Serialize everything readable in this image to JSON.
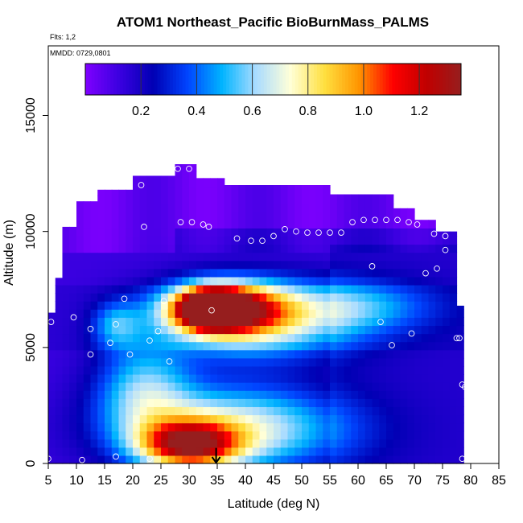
{
  "chart_data": {
    "type": "heatmap",
    "title": "ATOM1 Northeast_Pacific BioBurnMass_PALMS",
    "annotations": [
      "Flts: 1,2",
      "MMDD: 0729,0801"
    ],
    "xlabel": "Latitude (deg N)",
    "ylabel": "Altitude (m)",
    "xlim": [
      5,
      85
    ],
    "ylim": [
      0,
      18000
    ],
    "x_ticks": [
      5,
      10,
      15,
      20,
      25,
      30,
      35,
      40,
      45,
      50,
      55,
      60,
      65,
      70,
      75,
      80,
      85
    ],
    "y_ticks": [
      0,
      5000,
      10000,
      15000
    ],
    "colorbar": {
      "range": [
        0,
        1.35
      ],
      "ticks": [
        0.2,
        0.4,
        0.6,
        0.8,
        1.0,
        1.2
      ],
      "tick_labels": [
        "0.2",
        "0.4",
        "0.6",
        "0.8",
        "1.0",
        "1.2"
      ],
      "colors": [
        "#7f00ff",
        "#3a00e0",
        "#0000b4",
        "#0045ff",
        "#00b4ff",
        "#aadcff",
        "#ffffd8",
        "#ffe040",
        "#ff9600",
        "#ff0000",
        "#c00000",
        "#961e1e"
      ],
      "placement": "top inside plot"
    },
    "field_hotspots": [
      {
        "lat": 34,
        "alt": 6700,
        "value": 1.25,
        "sigma_lat": 3.5,
        "sigma_alt": 500
      },
      {
        "lat": 36,
        "alt": 6700,
        "value": 0.95,
        "sigma_lat": 7.0,
        "sigma_alt": 750
      },
      {
        "lat": 42,
        "alt": 6200,
        "value": 0.55,
        "sigma_lat": 12.0,
        "sigma_alt": 1200
      },
      {
        "lat": 30,
        "alt": 800,
        "value": 0.9,
        "sigma_lat": 6.0,
        "sigma_alt": 700
      },
      {
        "lat": 38,
        "alt": 1500,
        "value": 0.6,
        "sigma_lat": 14.0,
        "sigma_alt": 1300
      },
      {
        "lat": 22,
        "alt": 3200,
        "value": 0.4,
        "sigma_lat": 6.0,
        "sigma_alt": 1500
      },
      {
        "lat": 17,
        "alt": 6000,
        "value": 0.28,
        "sigma_lat": 3.0,
        "sigma_alt": 700
      },
      {
        "lat": 60,
        "alt": 6800,
        "value": 0.25,
        "sigma_lat": 10.0,
        "sigma_alt": 800
      }
    ],
    "samples": [
      {
        "lat": 5,
        "alt": 200
      },
      {
        "lat": 11,
        "alt": 150
      },
      {
        "lat": 17,
        "alt": 300
      },
      {
        "lat": 23,
        "alt": 200
      },
      {
        "lat": 5.5,
        "alt": 6100
      },
      {
        "lat": 9.5,
        "alt": 6300
      },
      {
        "lat": 12.5,
        "alt": 5800
      },
      {
        "lat": 12.5,
        "alt": 4700
      },
      {
        "lat": 16,
        "alt": 5200
      },
      {
        "lat": 17,
        "alt": 6000
      },
      {
        "lat": 19.5,
        "alt": 4700
      },
      {
        "lat": 18.5,
        "alt": 7100
      },
      {
        "lat": 23,
        "alt": 5300
      },
      {
        "lat": 24.5,
        "alt": 5700
      },
      {
        "lat": 25.5,
        "alt": 7000
      },
      {
        "lat": 26.5,
        "alt": 4400
      },
      {
        "lat": 8,
        "alt": 11300
      },
      {
        "lat": 21.5,
        "alt": 12000
      },
      {
        "lat": 22,
        "alt": 10200
      },
      {
        "lat": 28,
        "alt": 12700
      },
      {
        "lat": 30,
        "alt": 12700
      },
      {
        "lat": 28.5,
        "alt": 10400
      },
      {
        "lat": 30.5,
        "alt": 10400
      },
      {
        "lat": 32.5,
        "alt": 10300
      },
      {
        "lat": 33.5,
        "alt": 10200
      },
      {
        "lat": 34,
        "alt": 6600
      },
      {
        "lat": 38.5,
        "alt": 9700
      },
      {
        "lat": 41,
        "alt": 9600
      },
      {
        "lat": 43,
        "alt": 9600
      },
      {
        "lat": 45,
        "alt": 9800
      },
      {
        "lat": 47,
        "alt": 10100
      },
      {
        "lat": 49,
        "alt": 10000
      },
      {
        "lat": 51,
        "alt": 9950
      },
      {
        "lat": 53,
        "alt": 9950
      },
      {
        "lat": 55,
        "alt": 9950
      },
      {
        "lat": 57,
        "alt": 9950
      },
      {
        "lat": 59,
        "alt": 10400
      },
      {
        "lat": 61,
        "alt": 10500
      },
      {
        "lat": 63,
        "alt": 10500
      },
      {
        "lat": 65,
        "alt": 10500
      },
      {
        "lat": 67,
        "alt": 11300
      },
      {
        "lat": 67,
        "alt": 10500
      },
      {
        "lat": 69,
        "alt": 10400
      },
      {
        "lat": 70.5,
        "alt": 10300
      },
      {
        "lat": 73.5,
        "alt": 9900
      },
      {
        "lat": 75.5,
        "alt": 9800
      },
      {
        "lat": 75.5,
        "alt": 9200
      },
      {
        "lat": 74,
        "alt": 8400
      },
      {
        "lat": 72,
        "alt": 8200
      },
      {
        "lat": 62.5,
        "alt": 8500
      },
      {
        "lat": 64,
        "alt": 6100
      },
      {
        "lat": 66,
        "alt": 5100
      },
      {
        "lat": 69.5,
        "alt": 5600
      },
      {
        "lat": 77.5,
        "alt": 5400
      },
      {
        "lat": 78,
        "alt": 5400
      },
      {
        "lat": 78.5,
        "alt": 3400
      },
      {
        "lat": 79,
        "alt": 3300
      },
      {
        "lat": 78.5,
        "alt": 200
      }
    ],
    "marker_arrow": {
      "lat": 34.8,
      "alt_top": 600,
      "alt_bottom": 0
    },
    "grid": false,
    "legend": "colorbar at top"
  }
}
